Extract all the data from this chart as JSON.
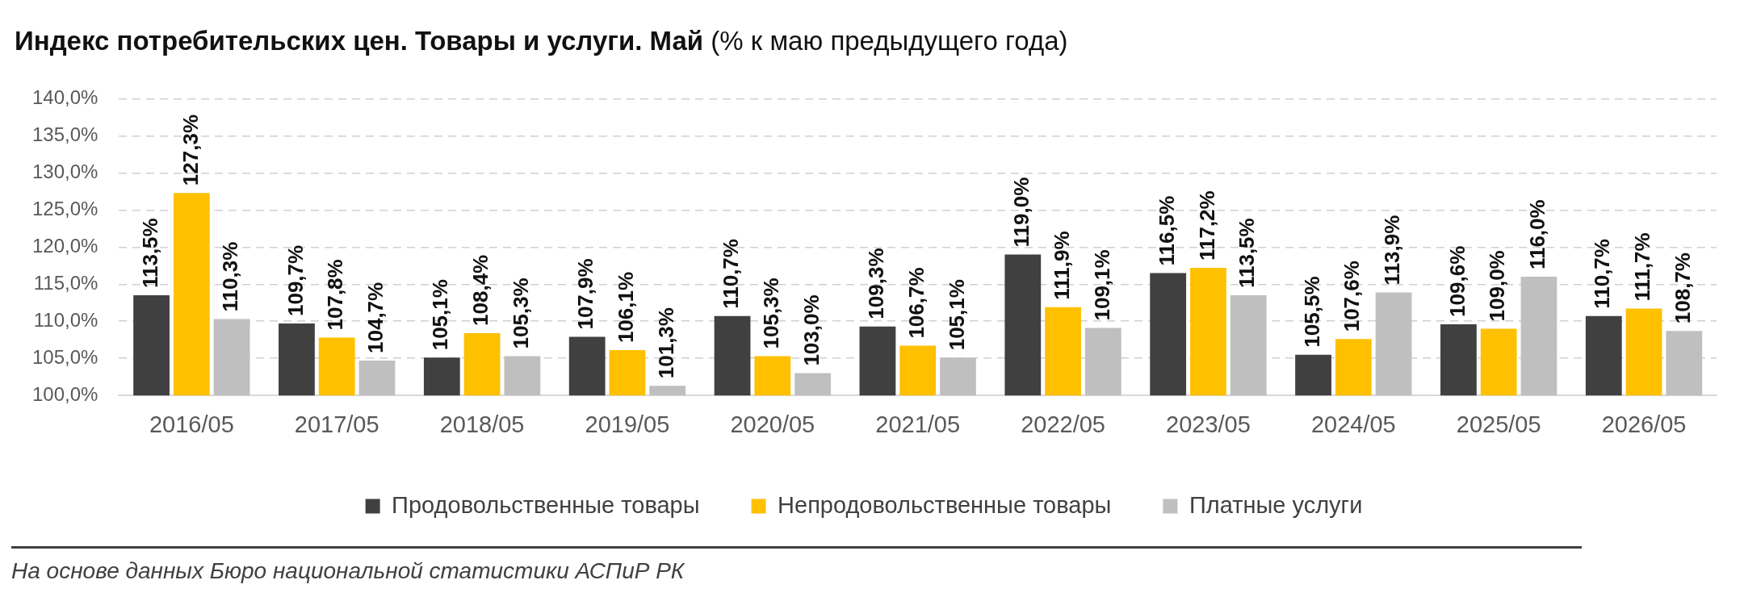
{
  "chart_data": {
    "type": "bar",
    "title": "Индекс потребительских цен. Товары и услуги. Май",
    "subtitle": "(% к маю предыдущего года)",
    "categories": [
      "2016/05",
      "2017/05",
      "2018/05",
      "2019/05",
      "2020/05",
      "2021/05",
      "2022/05",
      "2023/05",
      "2024/05",
      "2025/05",
      "2026/05"
    ],
    "series": [
      {
        "name": "Продовольственные товары",
        "color": "#404040",
        "values": [
          113.5,
          109.7,
          105.1,
          107.9,
          110.7,
          109.3,
          119.0,
          116.5,
          105.5,
          109.6,
          110.7
        ],
        "value_labels": [
          "113,5%",
          "109,7%",
          "105,1%",
          "107,9%",
          "110,7%",
          "109,3%",
          "119,0%",
          "116,5%",
          "105,5%",
          "109,6%",
          "110,7%"
        ]
      },
      {
        "name": "Непродовольственные товары",
        "color": "#ffc000",
        "values": [
          127.3,
          107.8,
          108.4,
          106.1,
          105.3,
          106.7,
          111.9,
          117.2,
          107.6,
          109.0,
          111.7
        ],
        "value_labels": [
          "127,3%",
          "107,8%",
          "108,4%",
          "106,1%",
          "105,3%",
          "106,7%",
          "111,9%",
          "117,2%",
          "107,6%",
          "109,0%",
          "111,7%"
        ]
      },
      {
        "name": "Платные услуги",
        "color": "#bfbfbf",
        "values": [
          110.3,
          104.7,
          105.3,
          101.3,
          103.0,
          105.1,
          109.1,
          113.5,
          113.9,
          116.0,
          108.7
        ],
        "value_labels": [
          "110,3%",
          "104,7%",
          "105,3%",
          "101,3%",
          "103,0%",
          "105,1%",
          "109,1%",
          "113,5%",
          "113,9%",
          "116,0%",
          "108,7%"
        ]
      }
    ],
    "ylim": [
      100,
      140
    ],
    "yticks": [
      {
        "value": 100,
        "label": "100,0%"
      },
      {
        "value": 105,
        "label": "105,0%"
      },
      {
        "value": 110,
        "label": "110,0%"
      },
      {
        "value": 115,
        "label": "115,0%"
      },
      {
        "value": 120,
        "label": "120,0%"
      },
      {
        "value": 125,
        "label": "125,0%"
      },
      {
        "value": 130,
        "label": "130,0%"
      },
      {
        "value": 135,
        "label": "135,0%"
      },
      {
        "value": 140,
        "label": "140,0%"
      }
    ],
    "grid": "y",
    "legend": "bottom",
    "annotations": [
      "На основе данных Бюро национальной статистики АСПиР РК"
    ]
  }
}
